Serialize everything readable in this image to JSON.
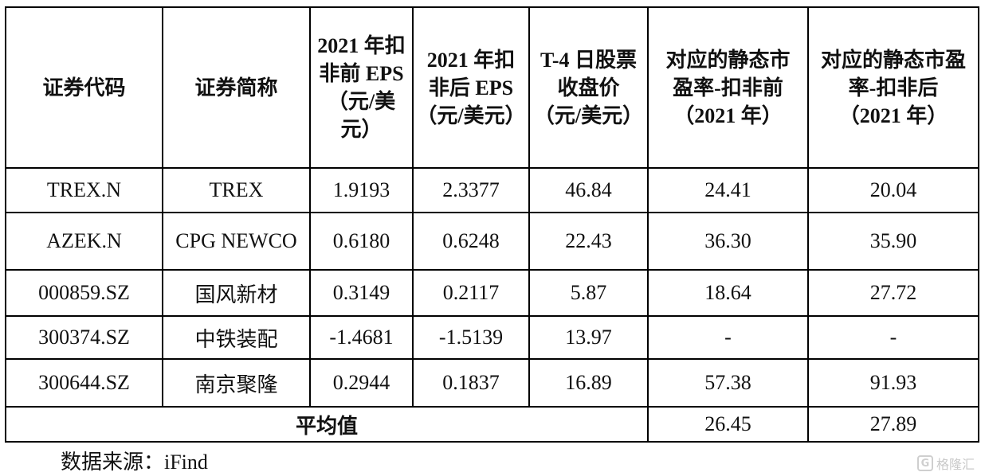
{
  "table": {
    "headers": [
      [
        "证券代码"
      ],
      [
        "证券简称"
      ],
      [
        "2021 年扣",
        "非前 EPS",
        "（元/美",
        "元）"
      ],
      [
        "2021 年扣",
        "非后 EPS",
        "（元/美元）"
      ],
      [
        "T-4 日股票",
        "收盘价",
        "（元/美元）"
      ],
      [
        "对应的静态市",
        "盈率-扣非前",
        "（2021 年）"
      ],
      [
        "对应的静态市盈",
        "率-扣非后",
        "（2021 年）"
      ]
    ],
    "rows": [
      [
        "TREX.N",
        "TREX",
        "1.9193",
        "2.3377",
        "46.84",
        "24.41",
        "20.04"
      ],
      [
        "AZEK.N",
        "CPG NEWCO",
        "0.6180",
        "0.6248",
        "22.43",
        "36.30",
        "35.90"
      ],
      [
        "000859.SZ",
        "国风新材",
        "0.3149",
        "0.2117",
        "5.87",
        "18.64",
        "27.72"
      ],
      [
        "300374.SZ",
        "中铁装配",
        "-1.4681",
        "-1.5139",
        "13.97",
        "-",
        "-"
      ],
      [
        "300644.SZ",
        "南京聚隆",
        "0.2944",
        "0.1837",
        "16.89",
        "57.38",
        "91.93"
      ]
    ],
    "average": {
      "label": "平均值",
      "pe_before": "26.45",
      "pe_after": "27.89"
    }
  },
  "source_note": "数据来源：iFind",
  "watermark": {
    "logo_letter": "G",
    "text": "格隆汇",
    "icon": "gelonghui-logo-icon"
  }
}
